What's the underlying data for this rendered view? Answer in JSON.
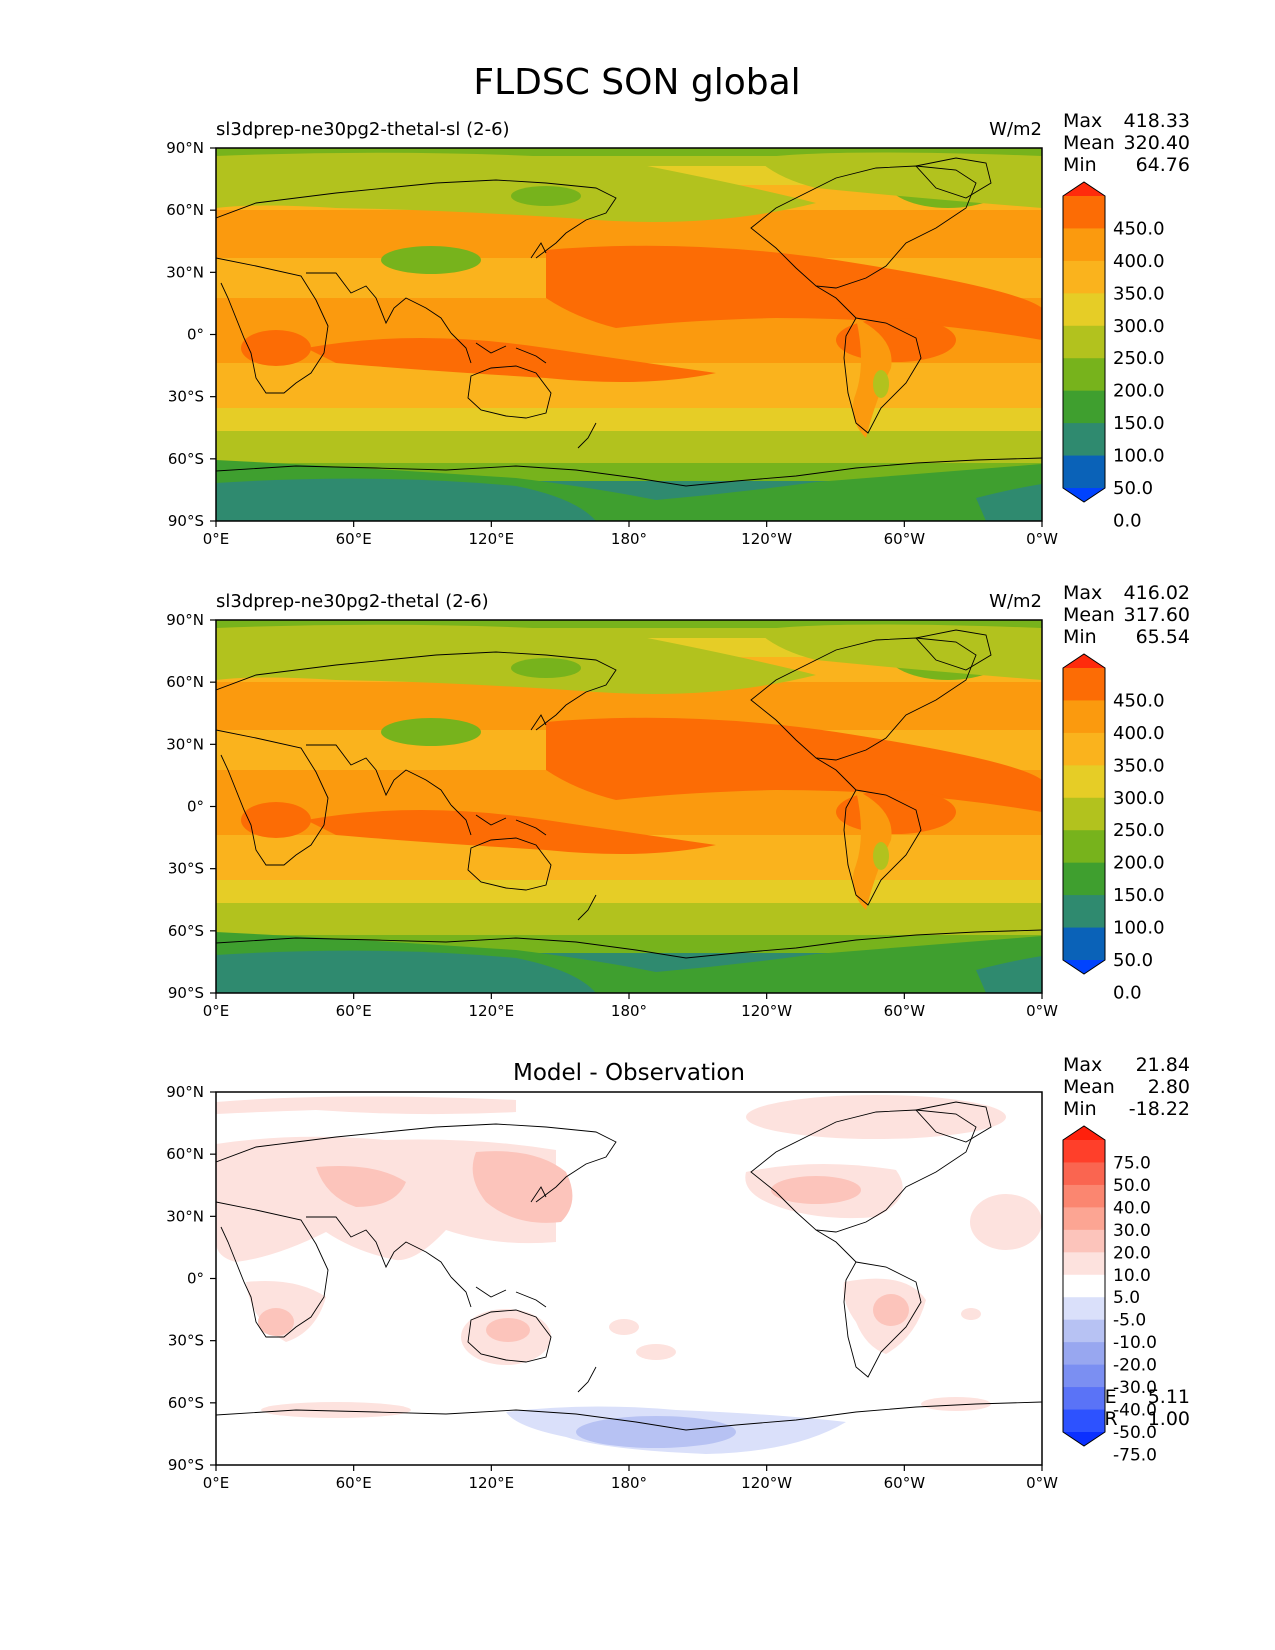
{
  "figure": {
    "title": "FLDSC SON global"
  },
  "panels": [
    {
      "id": "test",
      "left_title": "sl3dprep-ne30pg2-thetal-sl (2-6)",
      "center_title": "",
      "right_title": "W/m2",
      "stats": [
        {
          "label": "Max",
          "value": "418.33"
        },
        {
          "label": "Mean",
          "value": "320.40"
        },
        {
          "label": "Min",
          "value": "64.76"
        }
      ],
      "colorbar_labels": [
        "450.0",
        "400.0",
        "350.0",
        "300.0",
        "250.0",
        "200.0",
        "150.0",
        "100.0",
        "50.0",
        "0.0"
      ]
    },
    {
      "id": "reference",
      "left_title": "sl3dprep-ne30pg2-thetal (2-6)",
      "center_title": "",
      "right_title": "W/m2",
      "stats": [
        {
          "label": "Max",
          "value": "416.02"
        },
        {
          "label": "Mean",
          "value": "317.60"
        },
        {
          "label": "Min",
          "value": "65.54"
        }
      ],
      "colorbar_labels": [
        "450.0",
        "400.0",
        "350.0",
        "300.0",
        "250.0",
        "200.0",
        "150.0",
        "100.0",
        "50.0",
        "0.0"
      ]
    },
    {
      "id": "difference",
      "left_title": "",
      "center_title": "Model - Observation",
      "right_title": "",
      "stats": [
        {
          "label": "Max",
          "value": "21.84"
        },
        {
          "label": "Mean",
          "value": "2.80"
        },
        {
          "label": "Min",
          "value": "-18.22"
        }
      ],
      "bottom_stats": [
        {
          "label": "RMSE",
          "value": "5.11"
        },
        {
          "label": "CORR",
          "value": "1.00"
        }
      ],
      "colorbar_labels": [
        "75.0",
        "50.0",
        "40.0",
        "30.0",
        "20.0",
        "10.0",
        "5.0",
        "-5.0",
        "-10.0",
        "-20.0",
        "-30.0",
        "-40.0",
        "-50.0",
        "-75.0"
      ]
    }
  ],
  "axes": {
    "lat_ticks": [
      "90°N",
      "60°N",
      "30°N",
      "0°",
      "30°S",
      "60°S",
      "90°S"
    ],
    "lon_ticks": [
      "0°E",
      "60°E",
      "120°E",
      "180°",
      "120°W",
      "60°W",
      "0°W"
    ]
  },
  "colors": {
    "abs_palette": [
      "#0043ff",
      "#0a62b8",
      "#2f8a6f",
      "#3f9f2f",
      "#77b31c",
      "#b2c21e",
      "#e6cd26",
      "#fab31d",
      "#fb9a0e",
      "#fc6c05",
      "#ff2b0c"
    ],
    "diff_palette": [
      "#0b30ff",
      "#2d52ff",
      "#5a73f7",
      "#7b8ff2",
      "#98a7f0",
      "#b7c2f3",
      "#dae0fa",
      "#ffffff",
      "#fde2de",
      "#fcc4bb",
      "#fca593",
      "#fb8670",
      "#fa6550",
      "#ff3f2a",
      "#ff200c"
    ]
  },
  "chart_data": [
    {
      "type": "heatmap",
      "title": "sl3dprep-ne30pg2-thetal-sl (2-6)",
      "units": "W/m2",
      "xlabel": "",
      "ylabel": "",
      "x_ticks": [
        "0°E",
        "60°E",
        "120°E",
        "180°",
        "120°W",
        "60°W",
        "0°W"
      ],
      "y_ticks": [
        "90°N",
        "60°N",
        "30°N",
        "0°",
        "30°S",
        "60°S",
        "90°S"
      ],
      "levels": [
        0,
        50,
        100,
        150,
        200,
        250,
        300,
        350,
        400,
        450
      ],
      "stats": {
        "max": 418.33,
        "mean": 320.4,
        "min": 64.76
      }
    },
    {
      "type": "heatmap",
      "title": "sl3dprep-ne30pg2-thetal (2-6)",
      "units": "W/m2",
      "xlabel": "",
      "ylabel": "",
      "x_ticks": [
        "0°E",
        "60°E",
        "120°E",
        "180°",
        "120°W",
        "60°W",
        "0°W"
      ],
      "y_ticks": [
        "90°N",
        "60°N",
        "30°N",
        "0°",
        "30°S",
        "60°S",
        "90°S"
      ],
      "levels": [
        0,
        50,
        100,
        150,
        200,
        250,
        300,
        350,
        400,
        450
      ],
      "stats": {
        "max": 416.02,
        "mean": 317.6,
        "min": 65.54
      }
    },
    {
      "type": "heatmap",
      "title": "Model - Observation",
      "xlabel": "",
      "ylabel": "",
      "x_ticks": [
        "0°E",
        "60°E",
        "120°E",
        "180°",
        "120°W",
        "60°W",
        "0°W"
      ],
      "y_ticks": [
        "90°N",
        "60°N",
        "30°N",
        "0°",
        "30°S",
        "60°S",
        "90°S"
      ],
      "levels": [
        -75,
        -50,
        -40,
        -30,
        -20,
        -10,
        -5,
        5,
        10,
        20,
        30,
        40,
        50,
        75
      ],
      "stats": {
        "max": 21.84,
        "mean": 2.8,
        "min": -18.22,
        "rmse": 5.11,
        "corr": 1.0
      }
    }
  ]
}
